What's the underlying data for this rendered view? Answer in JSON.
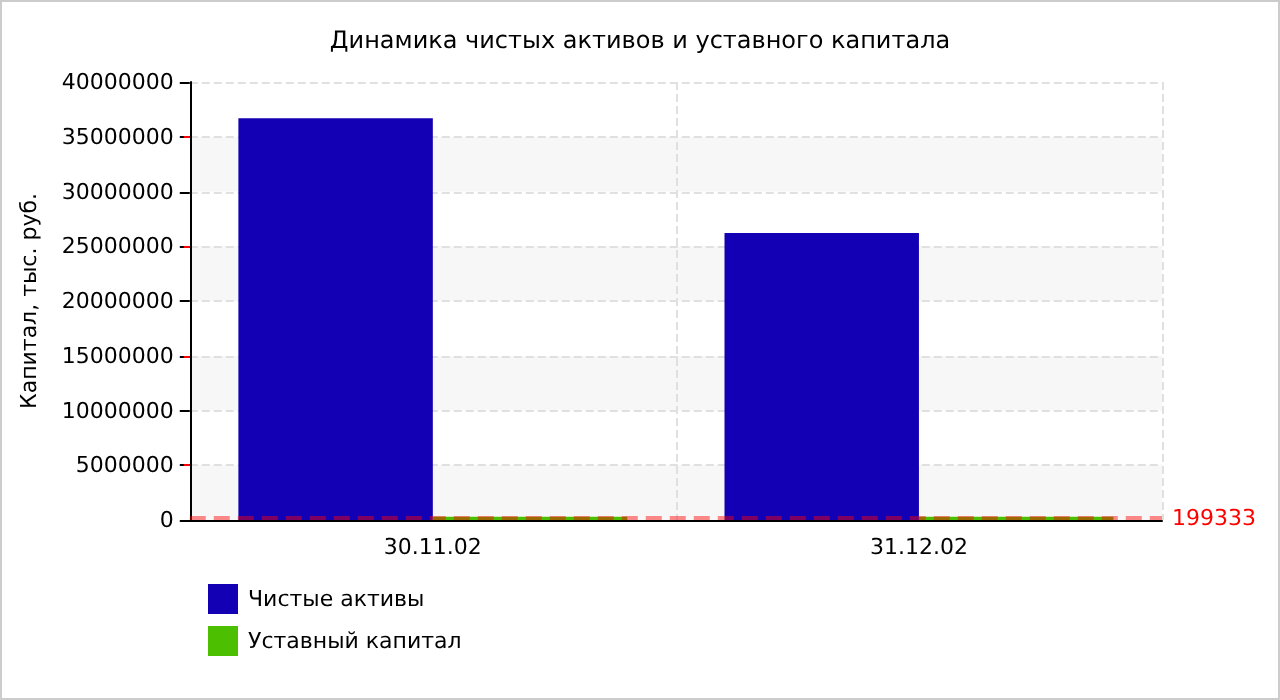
{
  "chart_data": {
    "type": "bar",
    "title": "Динамика чистых активов и уставного капитала",
    "ylabel": "Капитал, тыс. руб.",
    "categories": [
      "30.11.02",
      "31.12.02"
    ],
    "series": [
      {
        "name": "Чистые активы",
        "color": "#1400b4",
        "values": [
          36700000,
          26200000
        ]
      },
      {
        "name": "Уставный капитал",
        "color": "#4cc000",
        "values": [
          300000,
          300000
        ]
      }
    ],
    "ylim": [
      0,
      40000000
    ],
    "yticks": [
      0,
      5000000,
      10000000,
      15000000,
      20000000,
      25000000,
      30000000,
      35000000,
      40000000
    ],
    "ref_lines": [
      {
        "axis": "y",
        "value": 199333,
        "label": "199333",
        "color": "#ff0000",
        "line_style": "dashed"
      }
    ],
    "grid": true,
    "legend": "bottom left"
  }
}
